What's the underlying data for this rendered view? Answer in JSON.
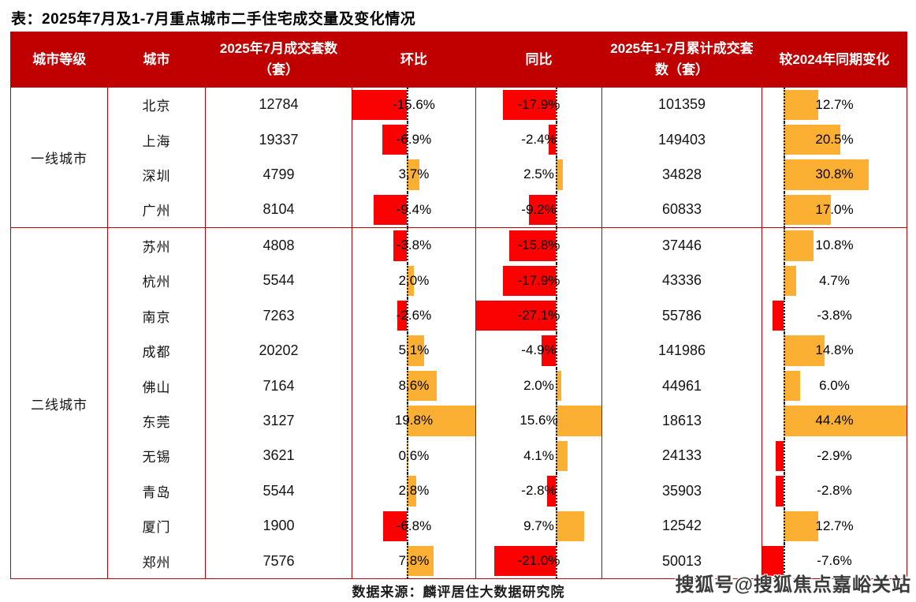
{
  "title": "表：2025年7月及1-7月重点城市二手住宅成交量及变化情况",
  "source": "数据来源：麟评居住大数据研究院",
  "watermark": "搜狐号@搜狐焦点嘉峪关站",
  "colors": {
    "header_bg": "#c00000",
    "table_border": "#c00000",
    "bar_negative": "#fa0202",
    "bar_positive": "#fbb033",
    "zero_line": "#1a1a1a",
    "text": "#141414"
  },
  "chart_data": {
    "type": "table",
    "title": "表：2025年7月及1-7月重点城市二手住宅成交量及变化情况",
    "columns": [
      "城市等级",
      "城市",
      "2025年7月成交套数（套）",
      "环比",
      "同比",
      "2025年1-7月累计成交套数（套）",
      "较2024年同期变化"
    ],
    "bar_axes": {
      "mom": {
        "name": "mom-bar",
        "min": -15.6,
        "max": 19.8
      },
      "yoy": {
        "name": "yoy-bar",
        "min": -27.1,
        "max": 15.6
      },
      "cum": {
        "name": "cum-change-bar",
        "min": -7.6,
        "max": 44.4
      }
    },
    "groups": [
      {
        "tier": "一线城市",
        "rows": [
          {
            "city": "北京",
            "jul_units": 12784,
            "mom_pct": -15.6,
            "yoy_pct": -17.9,
            "cum_units": 101359,
            "cum_change_pct": 12.7
          },
          {
            "city": "上海",
            "jul_units": 19337,
            "mom_pct": -6.9,
            "yoy_pct": -2.4,
            "cum_units": 149403,
            "cum_change_pct": 20.5
          },
          {
            "city": "深圳",
            "jul_units": 4799,
            "mom_pct": 3.7,
            "yoy_pct": 2.5,
            "cum_units": 34828,
            "cum_change_pct": 30.8
          },
          {
            "city": "广州",
            "jul_units": 8104,
            "mom_pct": -9.4,
            "yoy_pct": -9.2,
            "cum_units": 60833,
            "cum_change_pct": 17.0
          }
        ]
      },
      {
        "tier": "二线城市",
        "rows": [
          {
            "city": "苏州",
            "jul_units": 4808,
            "mom_pct": -3.8,
            "yoy_pct": -15.8,
            "cum_units": 37446,
            "cum_change_pct": 10.8
          },
          {
            "city": "杭州",
            "jul_units": 5544,
            "mom_pct": 2.0,
            "yoy_pct": -17.9,
            "cum_units": 43336,
            "cum_change_pct": 4.7
          },
          {
            "city": "南京",
            "jul_units": 7263,
            "mom_pct": -2.6,
            "yoy_pct": -27.1,
            "cum_units": 55786,
            "cum_change_pct": -3.8
          },
          {
            "city": "成都",
            "jul_units": 20202,
            "mom_pct": 5.1,
            "yoy_pct": -4.9,
            "cum_units": 141986,
            "cum_change_pct": 14.8
          },
          {
            "city": "佛山",
            "jul_units": 7164,
            "mom_pct": 8.6,
            "yoy_pct": 2.0,
            "cum_units": 44961,
            "cum_change_pct": 6.0
          },
          {
            "city": "东莞",
            "jul_units": 3127,
            "mom_pct": 19.8,
            "yoy_pct": 15.6,
            "cum_units": 18613,
            "cum_change_pct": 44.4
          },
          {
            "city": "无锡",
            "jul_units": 3621,
            "mom_pct": 0.6,
            "yoy_pct": 4.1,
            "cum_units": 24133,
            "cum_change_pct": -2.9
          },
          {
            "city": "青岛",
            "jul_units": 5544,
            "mom_pct": 2.8,
            "yoy_pct": -2.8,
            "cum_units": 35903,
            "cum_change_pct": -2.8
          },
          {
            "city": "厦门",
            "jul_units": 1900,
            "mom_pct": -6.8,
            "yoy_pct": 9.7,
            "cum_units": 12542,
            "cum_change_pct": 12.7
          },
          {
            "city": "郑州",
            "jul_units": 7576,
            "mom_pct": 7.8,
            "yoy_pct": -21.0,
            "cum_units": 50013,
            "cum_change_pct": -7.6
          }
        ]
      }
    ]
  }
}
